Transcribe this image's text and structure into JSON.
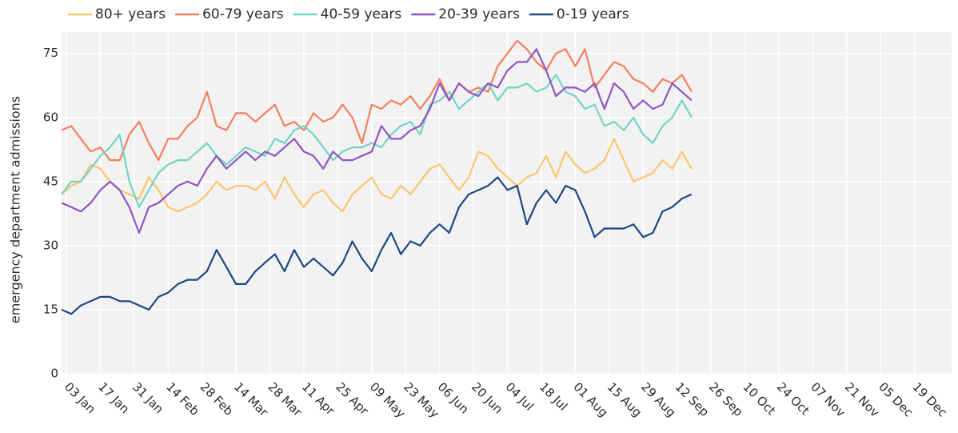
{
  "chart_data": {
    "type": "line",
    "y_label": "emergency department admissions",
    "x": [
      "01 Jan",
      "05 Jan",
      "09 Jan",
      "13 Jan",
      "17 Jan",
      "21 Jan",
      "25 Jan",
      "29 Jan",
      "02 Feb",
      "06 Feb",
      "10 Feb",
      "14 Feb",
      "18 Feb",
      "22 Feb",
      "26 Feb",
      "02 Mar",
      "06 Mar",
      "10 Mar",
      "14 Mar",
      "18 Mar",
      "22 Mar",
      "26 Mar",
      "30 Mar",
      "03 Apr",
      "07 Apr",
      "11 Apr",
      "15 Apr",
      "19 Apr",
      "23 Apr",
      "27 Apr",
      "01 May",
      "05 May",
      "09 May",
      "13 May",
      "17 May",
      "21 May",
      "25 May",
      "29 May",
      "02 Jun",
      "06 Jun",
      "10 Jun",
      "14 Jun",
      "18 Jun",
      "22 Jun",
      "26 Jun",
      "30 Jun",
      "04 Jul",
      "08 Jul",
      "12 Jul",
      "16 Jul",
      "20 Jul",
      "24 Jul",
      "28 Jul",
      "01 Aug",
      "05 Aug",
      "09 Aug",
      "13 Aug",
      "17 Aug",
      "21 Aug",
      "25 Aug",
      "29 Aug",
      "02 Sep",
      "06 Sep",
      "10 Sep",
      "14 Sep",
      "18 Sep"
    ],
    "series": [
      {
        "name": "80+ years",
        "color": "#fbc56e",
        "values": [
          42,
          44,
          45,
          49,
          48,
          45,
          43,
          42,
          41,
          46,
          43,
          39,
          38,
          39,
          40,
          42,
          45,
          43,
          44,
          44,
          43,
          45,
          41,
          46,
          42,
          39,
          42,
          43,
          40,
          38,
          42,
          44,
          46,
          42,
          41,
          44,
          42,
          45,
          48,
          49,
          46,
          43,
          46,
          52,
          51,
          48,
          46,
          44,
          46,
          47,
          51,
          46,
          52,
          49,
          47,
          48,
          50,
          55,
          50,
          45,
          46,
          47,
          50,
          48,
          52,
          48
        ]
      },
      {
        "name": "60-79 years",
        "color": "#f57f5e",
        "values": [
          57,
          58,
          55,
          52,
          53,
          50,
          50,
          56,
          59,
          54,
          50,
          55,
          55,
          58,
          60,
          66,
          58,
          57,
          61,
          61,
          59,
          61,
          63,
          58,
          59,
          57,
          61,
          59,
          60,
          63,
          60,
          54,
          63,
          62,
          64,
          63,
          65,
          62,
          65,
          69,
          64,
          68,
          66,
          67,
          66,
          72,
          75,
          78,
          76,
          73,
          71,
          75,
          76,
          72,
          76,
          67,
          70,
          73,
          72,
          69,
          68,
          66,
          69,
          68,
          70,
          66
        ]
      },
      {
        "name": "40-59 years",
        "color": "#72d6c1",
        "values": [
          42,
          45,
          45,
          48,
          51,
          53,
          56,
          45,
          39,
          43,
          47,
          49,
          50,
          50,
          52,
          54,
          51,
          49,
          51,
          53,
          52,
          51,
          55,
          54,
          57,
          58,
          56,
          53,
          50,
          52,
          53,
          53,
          54,
          53,
          56,
          58,
          59,
          56,
          63,
          64,
          66,
          62,
          64,
          66,
          68,
          64,
          67,
          67,
          68,
          66,
          67,
          70,
          66,
          65,
          62,
          63,
          58,
          59,
          57,
          60,
          56,
          54,
          58,
          60,
          64,
          60
        ]
      },
      {
        "name": "20-39 years",
        "color": "#8f55c5",
        "values": [
          40,
          39,
          38,
          40,
          43,
          45,
          43,
          39,
          33,
          39,
          40,
          42,
          44,
          45,
          44,
          48,
          51,
          48,
          50,
          52,
          50,
          52,
          51,
          53,
          55,
          52,
          51,
          48,
          52,
          50,
          50,
          51,
          52,
          58,
          55,
          55,
          57,
          58,
          62,
          68,
          64,
          68,
          66,
          65,
          68,
          67,
          71,
          73,
          73,
          76,
          71,
          65,
          67,
          67,
          66,
          68,
          62,
          68,
          66,
          62,
          64,
          62,
          63,
          68,
          66,
          64
        ]
      },
      {
        "name": "0-19 years",
        "color": "#1c4883",
        "values": [
          15,
          14,
          16,
          17,
          18,
          18,
          17,
          17,
          16,
          15,
          18,
          19,
          21,
          22,
          22,
          24,
          29,
          25,
          21,
          21,
          24,
          26,
          28,
          24,
          29,
          25,
          27,
          25,
          23,
          26,
          31,
          27,
          24,
          29,
          33,
          28,
          31,
          30,
          33,
          35,
          33,
          39,
          42,
          43,
          44,
          46,
          43,
          44,
          35,
          40,
          43,
          40,
          44,
          43,
          38,
          32,
          34,
          34,
          34,
          35,
          32,
          33,
          38,
          39,
          41,
          42
        ]
      }
    ],
    "xlim": [
      "01 Jan",
      "31 Dec"
    ],
    "xticks": [
      "03 Jan",
      "17 Jan",
      "31 Jan",
      "14 Feb",
      "28 Feb",
      "14 Mar",
      "28 Mar",
      "11 Apr",
      "25 Apr",
      "09 May",
      "23 May",
      "06 Jun",
      "20 Jun",
      "04 Jul",
      "18 Jul",
      "01 Aug",
      "15 Aug",
      "29 Aug",
      "12 Sep",
      "26 Sep",
      "10 Oct",
      "24 Oct",
      "07 Nov",
      "21 Nov",
      "05 Dec",
      "19 Dec"
    ],
    "ylim": [
      0,
      80
    ],
    "yticks": [
      0,
      15,
      30,
      45,
      60,
      75
    ],
    "grid": true,
    "legend": "top"
  }
}
